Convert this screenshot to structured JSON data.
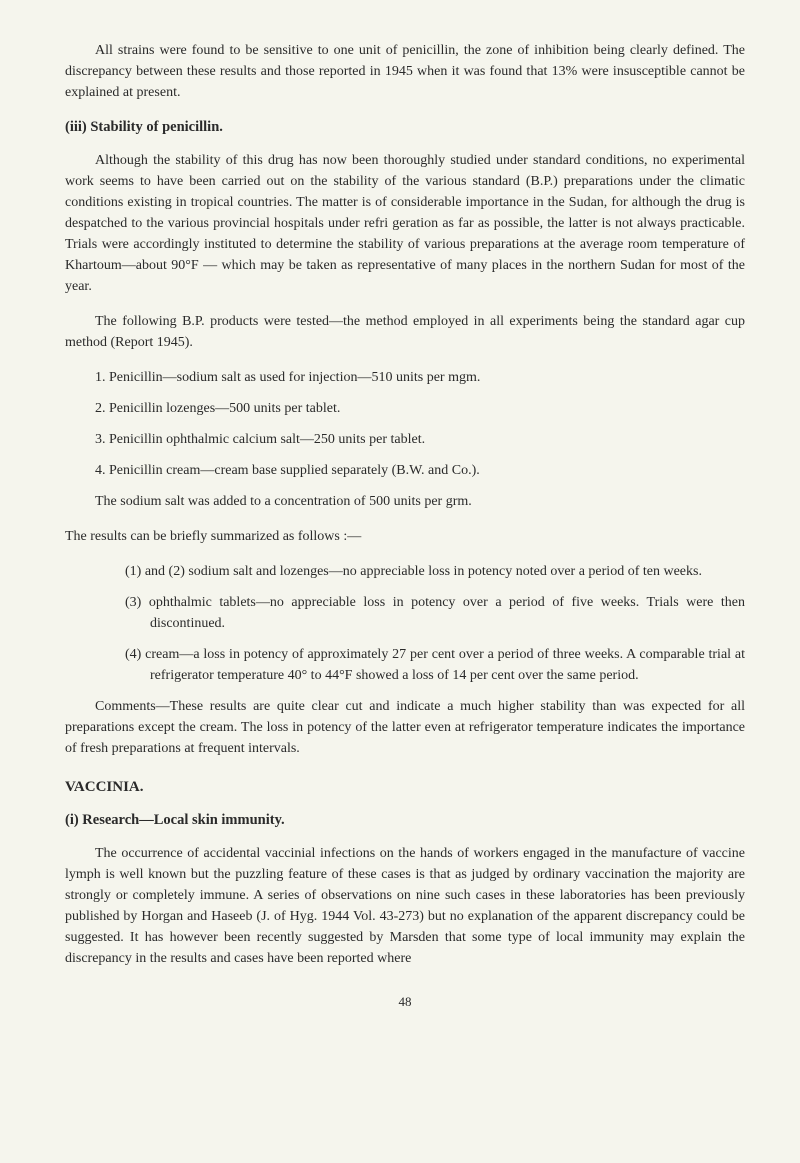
{
  "intro": "All strains were found to be sensitive to one unit of penicillin, the zone of inhibition being clearly defined. The discrepancy between these results and those reported in 1945 when it was found that 13% were insusceptible cannot be explained at present.",
  "section_iii": {
    "heading": "(iii) Stability of penicillin.",
    "p1": "Although the stability of this drug has now been thoroughly studied under standard conditions, no experimental work seems to have been carried out on the stability of the various standard (B.P.) preparations under the climatic conditions existing in tropical countries. The matter is of considerable importance in the Sudan, for although the drug is despatched to the various provincial hospitals under refri geration as far as possible, the latter is not always practicable. Trials were accordingly instituted to determine the stability of various preparations at the average room temperature of Khartoum—about 90°F — which may be taken as representative of many places in the northern Sudan for most of the year.",
    "p2": "The following B.P. products were tested—the method employed in all experiments being the standard agar cup method (Report 1945).",
    "item1": "1. Penicillin—sodium salt as used for injection—510 units per mgm.",
    "item2": "2. Penicillin lozenges—500 units per tablet.",
    "item3": "3. Penicillin ophthalmic calcium salt—250 units per tablet.",
    "item4": "4. Penicillin cream—cream base supplied separately (B.W. and Co.).",
    "p3": "The sodium salt was added to a concentration of 500 units per grm.",
    "p4": "The results can be briefly summarized as follows :—",
    "sub1": "(1) and (2) sodium salt and lozenges—no appreciable loss in potency noted over a period of ten weeks.",
    "sub2": "(3) ophthalmic tablets—no appreciable loss in potency over a period of five weeks. Trials were then discontinued.",
    "sub3": "(4) cream—a loss in potency of approximately 27 per cent over a period of three weeks. A comparable trial at refrigerator temperature 40° to 44°F showed a loss of 14 per cent over the same period.",
    "comments": "Comments—These results are quite clear cut and indicate a much higher stability than was expected for all preparations except the cream. The loss in potency of the latter even at refrigerator temperature indicates the importance of fresh preparations at frequent intervals."
  },
  "vaccinia": {
    "heading": "VACCINIA.",
    "subheading": "(i) Research—Local skin immunity.",
    "p1": "The occurrence of accidental vaccinial infections on the hands of workers engaged in the manufacture of vaccine lymph is well known but the puzzling feature of these cases is that as judged by ordinary vaccination the majority are strongly or completely immune. A series of observations on nine such cases in these laboratories has been previously published by Horgan and Haseeb (J. of Hyg. 1944 Vol. 43-273) but no explanation of the apparent discrepancy could be suggested. It has however been recently suggested by Marsden that some type of local immunity may explain the discrepancy in the results and cases have been reported where"
  },
  "page_number": "48"
}
